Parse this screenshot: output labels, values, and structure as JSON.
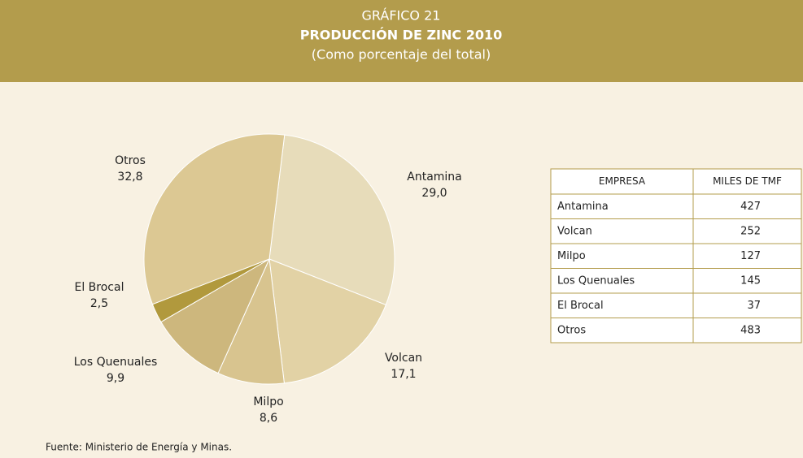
{
  "chart_data": {
    "type": "pie",
    "title": "GRÁFICO 21",
    "subtitle": "PRODUCCIÓN DE ZINC 2010",
    "note": "(Como porcentaje del total)",
    "categories": [
      "Antamina",
      "Volcan",
      "Milpo",
      "Los Quenuales",
      "El Brocal",
      "Otros"
    ],
    "values": [
      29.0,
      17.1,
      8.6,
      9.9,
      2.5,
      32.8
    ],
    "value_labels": [
      "29,0",
      "17,1",
      "8,6",
      "9,9",
      "2,5",
      "32,8"
    ],
    "colors": [
      "#e7dcba",
      "#e2d2a5",
      "#d8c48f",
      "#cdb77d",
      "#b1993d",
      "#dcc893"
    ],
    "source": "Fuente: Ministerio de Energía y Minas."
  },
  "table": {
    "headers": [
      "EMPRESA",
      "MILES DE TMF"
    ],
    "rows": [
      [
        "Antamina",
        427
      ],
      [
        "Volcan",
        252
      ],
      [
        "Milpo",
        127
      ],
      [
        "Los Quenuales",
        145
      ],
      [
        "El Brocal",
        37
      ],
      [
        "Otros",
        483
      ]
    ]
  }
}
